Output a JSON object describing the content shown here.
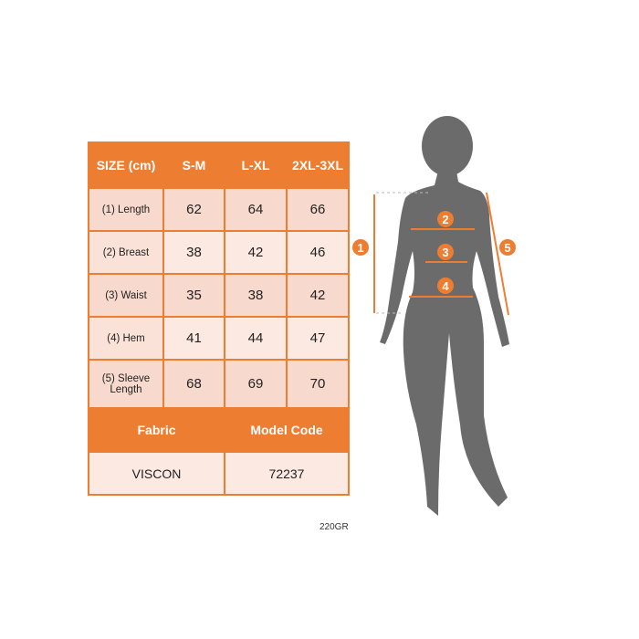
{
  "table": {
    "headers": [
      "SIZE (cm)",
      "S-M",
      "L-XL",
      "2XL-3XL"
    ],
    "rows": [
      {
        "label": "(1) Length",
        "values": [
          "62",
          "64",
          "66"
        ]
      },
      {
        "label": "(2) Breast",
        "values": [
          "38",
          "42",
          "46"
        ]
      },
      {
        "label": "(3) Waist",
        "values": [
          "35",
          "38",
          "42"
        ]
      },
      {
        "label": "(4) Hem",
        "values": [
          "41",
          "44",
          "47"
        ]
      },
      {
        "label": "(5) Sleeve Length",
        "values": [
          "68",
          "69",
          "70"
        ]
      }
    ],
    "fabric_label": "Fabric",
    "model_code_label": "Model Code",
    "fabric": "VISCON",
    "model_code": "72237"
  },
  "weight_code": "220GR",
  "figure": {
    "markers": [
      "1",
      "2",
      "3",
      "4",
      "5"
    ],
    "accent_color": "#ed7d31",
    "silhouette_color": "#6b6b6b"
  }
}
